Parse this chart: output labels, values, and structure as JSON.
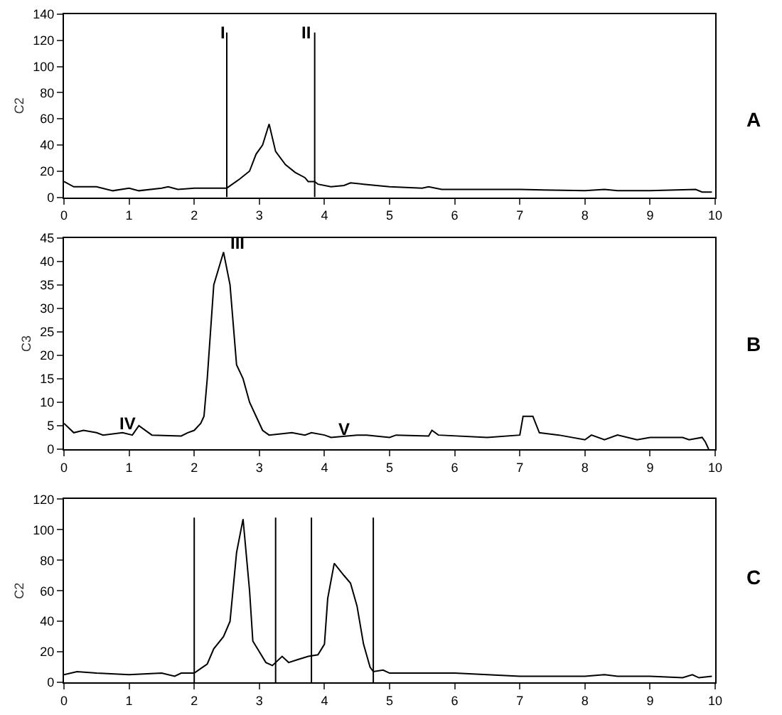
{
  "chart_data": [
    {
      "type": "line",
      "ylabel": "C2",
      "annotations": [
        "A"
      ],
      "xlim": [
        0,
        10
      ],
      "xticks": [
        0,
        1,
        2,
        3,
        4,
        5,
        6,
        7,
        8,
        9,
        10
      ],
      "ylim": [
        0,
        140
      ],
      "yticks": [
        0,
        20,
        40,
        60,
        80,
        100,
        120,
        140
      ],
      "marker": "none",
      "line_style": "solid",
      "ref_lines": [
        {
          "axis": "x",
          "value": 2.5,
          "label": "I"
        },
        {
          "axis": "x",
          "value": 3.85,
          "label": "II"
        }
      ],
      "series": [
        {
          "color": "#000000",
          "x": [
            0,
            0.15,
            0.5,
            0.75,
            1.0,
            1.15,
            1.5,
            1.6,
            1.75,
            2.0,
            2.5,
            2.7,
            2.85,
            2.95,
            3.05,
            3.15,
            3.25,
            3.4,
            3.55,
            3.7,
            3.75,
            3.85,
            3.9,
            4.1,
            4.3,
            4.4,
            4.6,
            5.0,
            5.5,
            5.6,
            5.8,
            6.5,
            7.0,
            8.0,
            8.3,
            8.5,
            9.0,
            9.7,
            9.8,
            9.95
          ],
          "values": [
            12,
            8,
            8,
            5,
            7,
            5,
            7,
            8,
            6,
            7,
            7,
            14,
            20,
            33,
            40,
            56,
            35,
            25,
            19,
            15,
            12,
            12,
            10,
            8,
            9,
            11,
            10,
            8,
            7,
            8,
            6,
            6,
            6,
            5,
            6,
            5,
            5,
            6,
            4,
            4
          ]
        }
      ]
    },
    {
      "type": "line",
      "ylabel": "C3",
      "annotations": [
        "B",
        {
          "text": "III",
          "x": 2.45,
          "y": 42
        },
        {
          "text": "IV",
          "x": 0.75,
          "y": 3.5
        },
        {
          "text": "V",
          "x": 4.1,
          "y": 2.5
        }
      ],
      "xlim": [
        0,
        10
      ],
      "xticks": [
        0,
        1,
        2,
        3,
        4,
        5,
        6,
        7,
        8,
        9,
        10
      ],
      "ylim": [
        0,
        45
      ],
      "yticks": [
        0,
        5,
        10,
        15,
        20,
        25,
        30,
        35,
        40,
        45
      ],
      "marker": "none",
      "line_style": "solid",
      "series": [
        {
          "color": "#000000",
          "x": [
            0,
            0.15,
            0.3,
            0.5,
            0.6,
            0.9,
            1.05,
            1.15,
            1.3,
            1.35,
            1.8,
            1.9,
            2.0,
            2.1,
            2.15,
            2.2,
            2.3,
            2.45,
            2.55,
            2.65,
            2.75,
            2.85,
            2.95,
            3.05,
            3.15,
            3.5,
            3.7,
            3.8,
            4.0,
            4.1,
            4.5,
            4.65,
            5.0,
            5.1,
            5.6,
            5.65,
            5.75,
            6.5,
            7.0,
            7.05,
            7.2,
            7.3,
            7.6,
            8.0,
            8.1,
            8.3,
            8.5,
            8.8,
            9.0,
            9.5,
            9.6,
            9.8,
            9.85,
            9.9
          ],
          "values": [
            5.5,
            3.5,
            4,
            3.5,
            3,
            3.5,
            3,
            5,
            3.5,
            3,
            2.8,
            3.5,
            4,
            5.5,
            7,
            15,
            35,
            42,
            35,
            18,
            15,
            10,
            7,
            4,
            3,
            3.5,
            3,
            3.5,
            3,
            2.5,
            3,
            3,
            2.5,
            3,
            2.8,
            4,
            3,
            2.5,
            3,
            7,
            7,
            3.5,
            3,
            2,
            3,
            2,
            3,
            2,
            2.5,
            2.5,
            2,
            2.5,
            1.5,
            0
          ]
        }
      ]
    },
    {
      "type": "line",
      "ylabel": "C2",
      "annotations": [
        "C"
      ],
      "xlim": [
        0,
        10
      ],
      "xticks": [
        0,
        1,
        2,
        3,
        4,
        5,
        6,
        7,
        8,
        9,
        10
      ],
      "ylim": [
        0,
        120
      ],
      "yticks": [
        0,
        20,
        40,
        60,
        80,
        100,
        120
      ],
      "marker": "none",
      "line_style": "solid",
      "ref_lines": [
        {
          "axis": "x",
          "value": 2.0
        },
        {
          "axis": "x",
          "value": 3.25
        },
        {
          "axis": "x",
          "value": 3.8
        },
        {
          "axis": "x",
          "value": 4.75
        }
      ],
      "series": [
        {
          "color": "#000000",
          "x": [
            0,
            0.2,
            0.5,
            1.0,
            1.5,
            1.7,
            1.8,
            2.0,
            2.1,
            2.2,
            2.3,
            2.45,
            2.55,
            2.65,
            2.75,
            2.85,
            2.9,
            3.0,
            3.1,
            3.2,
            3.35,
            3.45,
            3.6,
            3.75,
            3.9,
            4.0,
            4.05,
            4.15,
            4.3,
            4.4,
            4.5,
            4.6,
            4.7,
            4.75,
            4.9,
            5.0,
            5.5,
            6.0,
            6.5,
            7.0,
            7.5,
            8.0,
            8.3,
            8.5,
            9.0,
            9.5,
            9.65,
            9.75,
            9.95
          ],
          "values": [
            5,
            7,
            6,
            5,
            6,
            4,
            6,
            6,
            9,
            12,
            22,
            30,
            40,
            85,
            107,
            60,
            27,
            20,
            13,
            11,
            17,
            13,
            15,
            17,
            18,
            25,
            55,
            78,
            70,
            65,
            50,
            25,
            10,
            7,
            8,
            6,
            6,
            6,
            5,
            4,
            4,
            4,
            5,
            4,
            4,
            3,
            5,
            3,
            4
          ]
        }
      ]
    }
  ]
}
